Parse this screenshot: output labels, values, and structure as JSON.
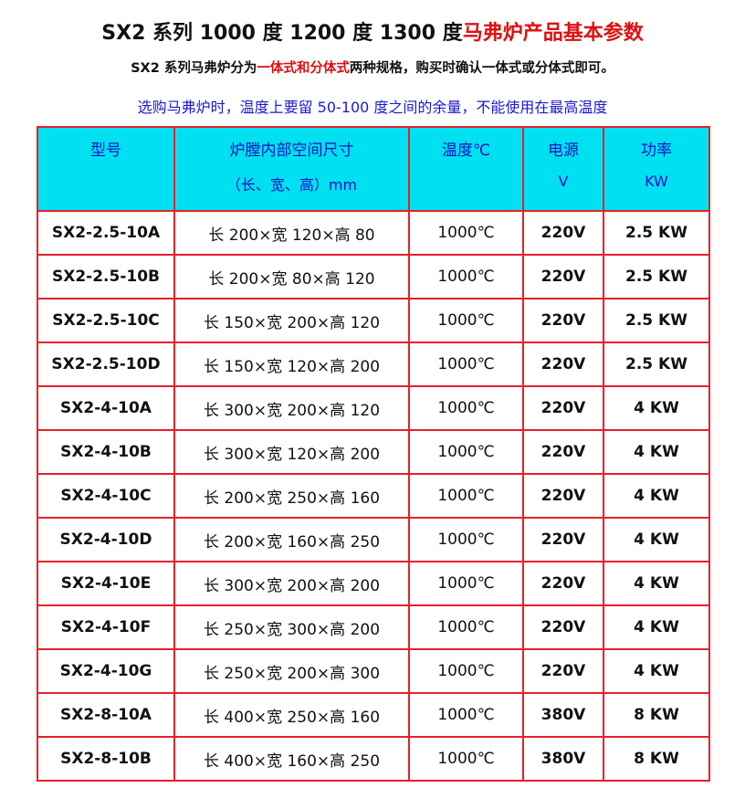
{
  "title": {
    "black": "SX2 系列 1000 度 1200 度 1300 度",
    "red": "马弗炉产品基本参数"
  },
  "note": {
    "before": "SX2 系列马弗炉分为",
    "red": "一体式和分体式",
    "after": "两种规格，购买时确认一体式或分体式即可。"
  },
  "advice": "选购马弗炉时，温度上要留 50-100 度之间的余量，不能使用在最高温度",
  "table": {
    "headers": [
      [
        "型号"
      ],
      [
        "炉膛内部空间尺寸",
        "（长、宽、高）mm"
      ],
      [
        "温度℃"
      ],
      [
        "电源",
        "V"
      ],
      [
        "功率",
        "KW"
      ]
    ],
    "rows": [
      [
        "SX2-2.5-10A",
        "长 200×宽 120×高 80",
        "1000℃",
        "220V",
        "2.5 KW"
      ],
      [
        "SX2-2.5-10B",
        "长 200×宽 80×高 120",
        "1000℃",
        "220V",
        "2.5 KW"
      ],
      [
        "SX2-2.5-10C",
        "长 150×宽 200×高 120",
        "1000℃",
        "220V",
        "2.5 KW"
      ],
      [
        "SX2-2.5-10D",
        "长 150×宽 120×高 200",
        "1000℃",
        "220V",
        "2.5 KW"
      ],
      [
        "SX2-4-10A",
        "长 300×宽 200×高 120",
        "1000℃",
        "220V",
        "4 KW"
      ],
      [
        "SX2-4-10B",
        "长 300×宽 120×高 200",
        "1000℃",
        "220V",
        "4 KW"
      ],
      [
        "SX2-4-10C",
        "长 200×宽 250×高 160",
        "1000℃",
        "220V",
        "4 KW"
      ],
      [
        "SX2-4-10D",
        "长 200×宽 160×高 250",
        "1000℃",
        "220V",
        "4 KW"
      ],
      [
        "SX2-4-10E",
        "长 300×宽 200×高 200",
        "1000℃",
        "220V",
        "4 KW"
      ],
      [
        "SX2-4-10F",
        "长 250×宽 300×高 200",
        "1000℃",
        "220V",
        "4 KW"
      ],
      [
        "SX2-4-10G",
        "长 250×宽 200×高 300",
        "1000℃",
        "220V",
        "4 KW"
      ],
      [
        "SX2-8-10A",
        "长 400×宽 250×高 160",
        "1000℃",
        "380V",
        "8 KW"
      ],
      [
        "SX2-8-10B",
        "长 400×宽 160×高 250",
        "1000℃",
        "380V",
        "8 KW"
      ]
    ]
  }
}
